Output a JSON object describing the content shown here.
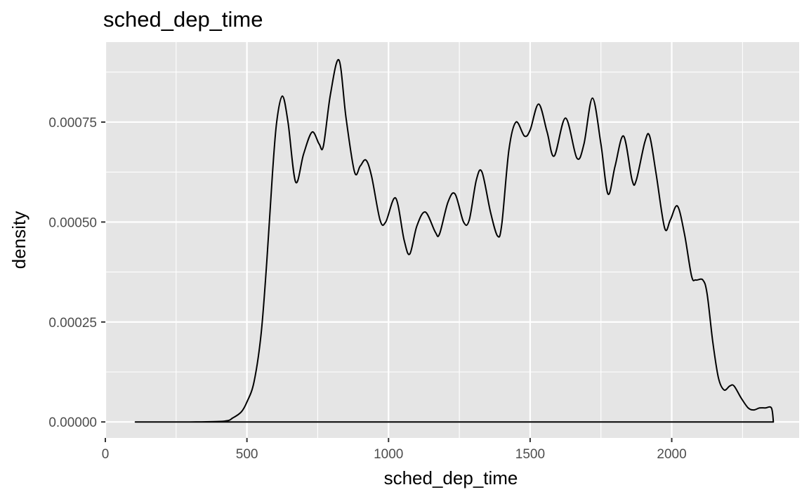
{
  "chart_data": {
    "type": "area",
    "title": "sched_dep_time",
    "xlabel": "sched_dep_time",
    "ylabel": "density",
    "xlim": [
      0,
      2450
    ],
    "ylim": [
      -4e-05,
      0.00095
    ],
    "x_ticks": [
      0,
      500,
      1000,
      1500,
      2000
    ],
    "x_tick_labels": [
      "0",
      "500",
      "1000",
      "1500",
      "2000"
    ],
    "y_ticks": [
      0,
      0.00025,
      0.0005,
      0.00075
    ],
    "y_tick_labels": [
      "0.00000",
      "0.00025",
      "0.00050",
      "0.00075"
    ],
    "grid": true,
    "legend": "none",
    "colors": {
      "panel": "#e5e5e5",
      "grid": "#ffffff",
      "line": "#000000",
      "tick_text": "#4d4d4d"
    },
    "series": [
      {
        "x": [
          106,
          300,
          420,
          450,
          480,
          500,
          525,
          550,
          570,
          590,
          605,
          625,
          645,
          672,
          700,
          730,
          755,
          770,
          795,
          825,
          850,
          880,
          900,
          920,
          940,
          970,
          990,
          1025,
          1055,
          1075,
          1100,
          1130,
          1165,
          1180,
          1210,
          1235,
          1265,
          1285,
          1310,
          1330,
          1360,
          1385,
          1400,
          1425,
          1450,
          1480,
          1500,
          1530,
          1560,
          1585,
          1625,
          1665,
          1690,
          1720,
          1750,
          1775,
          1800,
          1830,
          1860,
          1875,
          1905,
          1922,
          1945,
          1975,
          1995,
          2020,
          2045,
          2070,
          2085,
          2110,
          2125,
          2145,
          2165,
          2185,
          2205,
          2220,
          2245,
          2270,
          2290,
          2310,
          2330,
          2352,
          2359
        ],
        "y": [
          0,
          0,
          2e-06,
          1e-05,
          2.5e-05,
          5e-05,
          0.0001,
          0.00022,
          0.0004,
          0.00062,
          0.00075,
          0.000815,
          0.00075,
          0.0006,
          0.00067,
          0.000725,
          0.000695,
          0.00069,
          0.00082,
          0.000905,
          0.00076,
          0.000625,
          0.00064,
          0.000655,
          0.000615,
          0.000505,
          0.0005,
          0.00056,
          0.000455,
          0.00042,
          0.00049,
          0.000525,
          0.000475,
          0.00047,
          0.00055,
          0.00057,
          0.0005,
          0.000505,
          0.000605,
          0.000625,
          0.000525,
          0.000465,
          0.000495,
          0.00068,
          0.00075,
          0.000715,
          0.00073,
          0.000795,
          0.000725,
          0.000665,
          0.00076,
          0.00066,
          0.000695,
          0.00081,
          0.000695,
          0.00057,
          0.00064,
          0.000715,
          0.000605,
          0.000605,
          0.0007,
          0.000715,
          0.00062,
          0.000485,
          0.000505,
          0.00054,
          0.00047,
          0.000365,
          0.000355,
          0.000355,
          0.00032,
          0.0002,
          0.00011,
          8e-05,
          9e-05,
          9e-05,
          6e-05,
          3.5e-05,
          3e-05,
          3.5e-05,
          3.5e-05,
          3.5e-05,
          0
        ]
      }
    ]
  }
}
